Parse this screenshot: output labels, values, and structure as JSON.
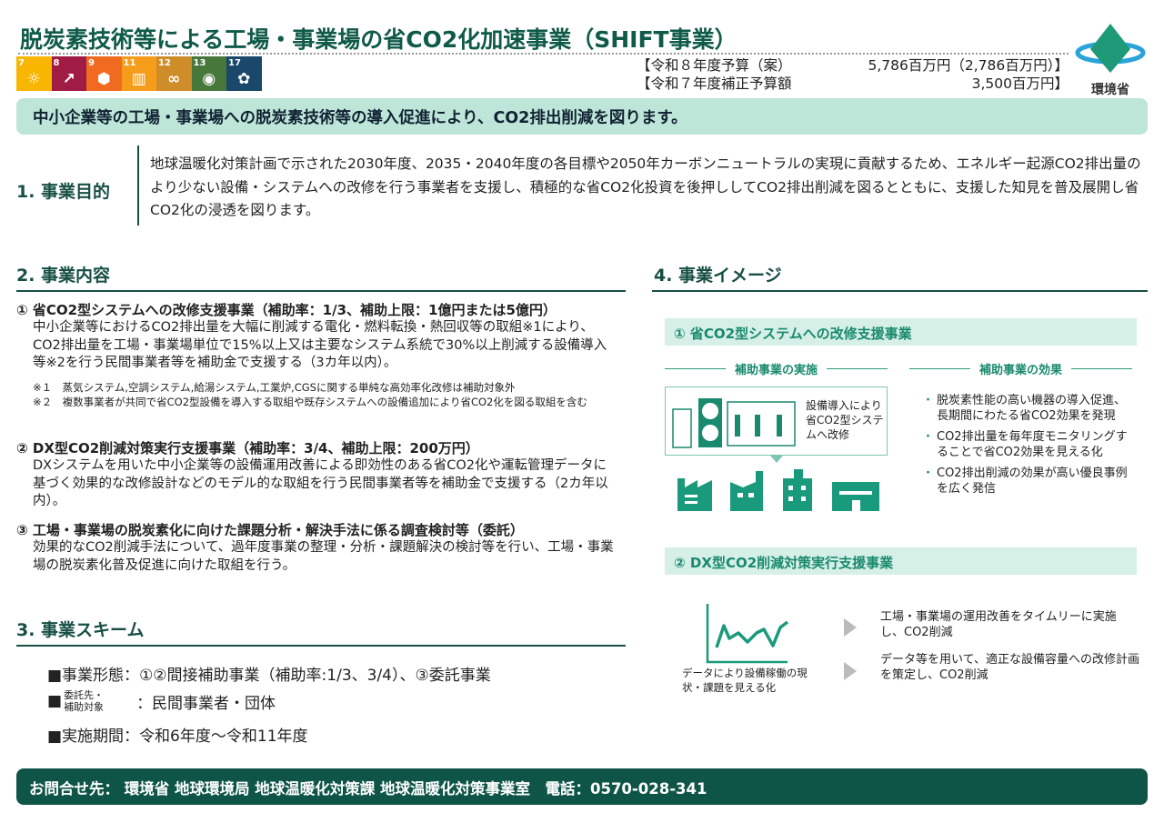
{
  "title": "脱炭素技術等による工場・事業場の省CO2化加速事業（SHIFT事業）",
  "sdgs": [
    {
      "num": "7",
      "color": "#f9b600",
      "icon": "sun-icon"
    },
    {
      "num": "8",
      "color": "#a01c44",
      "icon": "growth-chart-icon"
    },
    {
      "num": "9",
      "color": "#f06a1f",
      "icon": "cubes-icon"
    },
    {
      "num": "11",
      "color": "#f59d1a",
      "icon": "city-icon"
    },
    {
      "num": "12",
      "color": "#cf8d2a",
      "icon": "infinity-icon"
    },
    {
      "num": "13",
      "color": "#48773c",
      "icon": "eye-globe-icon"
    },
    {
      "num": "17",
      "color": "#19486a",
      "icon": "flower-icon"
    }
  ],
  "budget": {
    "line1_label": "【令和８年度予算（案）",
    "line1_value": "5,786百万円（2,786百万円）】",
    "line2_label": "【令和７年度補正予算額",
    "line2_value": "3,500百万円】"
  },
  "logo": {
    "text": "環境省"
  },
  "banner": "中小企業等の工場・事業場への脱炭素技術等の導入促進により、CO2排出削減を図ります。",
  "purpose": {
    "heading": "1. 事業目的",
    "text": "地球温暖化対策計画で示された2030年度、2035・2040年度の各目標や2050年カーボンニュートラルの実現に貢献するため、エネルギー起源CO2排出量のより少ない設備・システムへの改修を行う事業者を支援し、積極的な省CO2化投資を後押ししてCO2排出削減を図るとともに、支援した知見を普及展開し省CO2化の浸透を図ります。"
  },
  "content": {
    "heading": "2. 事業内容",
    "items": [
      {
        "title": "① 省CO2型システムへの改修支援事業（補助率：1/3、補助上限：1億円または5億円）",
        "body": "中小企業等におけるCO2排出量を大幅に削減する電化・燃料転換・熱回収等の取組※1により、CO2排出量を工場・事業場単位で15%以上又は主要なシステム系統で30%以上削減する設備導入等※2を行う民間事業者等を補助金で支援する（3カ年以内）。",
        "notes": [
          "※１　蒸気システム,空調システム,給湯システム,工業炉,CGSに関する単純な高効率化改修は補助対象外",
          "※２　複数事業者が共同で省CO2型設備を導入する取組や既存システムへの設備追加により省CO2化を図る取組を含む"
        ]
      },
      {
        "title": "② DX型CO2削減対策実行支援事業（補助率：3/4、補助上限：200万円）",
        "body": "DXシステムを用いた中小企業等の設備運用改善による即効性のある省CO2化や運転管理データに基づく効果的な改修設計などのモデル的な取組を行う民間事業者等を補助金で支援する（2カ年以内）。"
      },
      {
        "title": "③ 工場・事業場の脱炭素化に向けた課題分析・解決手法に係る調査検討等（委託）",
        "body": "効果的なCO2削減手法について、過年度事業の整理・分析・課題解決の検討等を行い、工場・事業場の脱炭素化普及促進に向けた取組を行う。"
      }
    ]
  },
  "scheme": {
    "heading": "3. 事業スキーム",
    "rows": [
      {
        "label": "■事業形態：",
        "value": "①②間接補助事業（補助率:1/3、3/4）、③委託事業"
      },
      {
        "label_a": "委託先・",
        "label_b": "補助対象",
        "value": "：民間事業者・団体"
      },
      {
        "label": "■実施期間：",
        "value": "令和6年度～令和11年度"
      }
    ]
  },
  "image": {
    "heading": "4. 事業イメージ",
    "box1": {
      "title": "① 省CO2型システムへの改修支援事業",
      "left_heading": "補助事業の実施",
      "right_heading": "補助事業の効果",
      "callout": "設備導入により省CO2型システムへ改修",
      "bullets": [
        "脱炭素性能の高い機器の導入促進、長期間にわたる省CO2効果を発現",
        "CO2排出量を毎年度モニタリングすることで省CO2効果を見える化",
        "CO2排出削減の効果が高い優良事例を広く発信"
      ]
    },
    "box2": {
      "title": "② DX型CO2削減対策実行支援事業",
      "caption": "データにより設備稼働の現状・課題を見える化",
      "results": [
        "工場・事業場の運用改善をタイムリーに実施し、CO2削減",
        "データ等を用いて、適正な設備容量への改修計画を策定し、CO2削減"
      ]
    },
    "accent": "#00987a"
  },
  "footer": "お問合せ先：  環境省 地球環境局 地球温暖化対策課 地球温暖化対策事業室　電話：0570-028-341"
}
